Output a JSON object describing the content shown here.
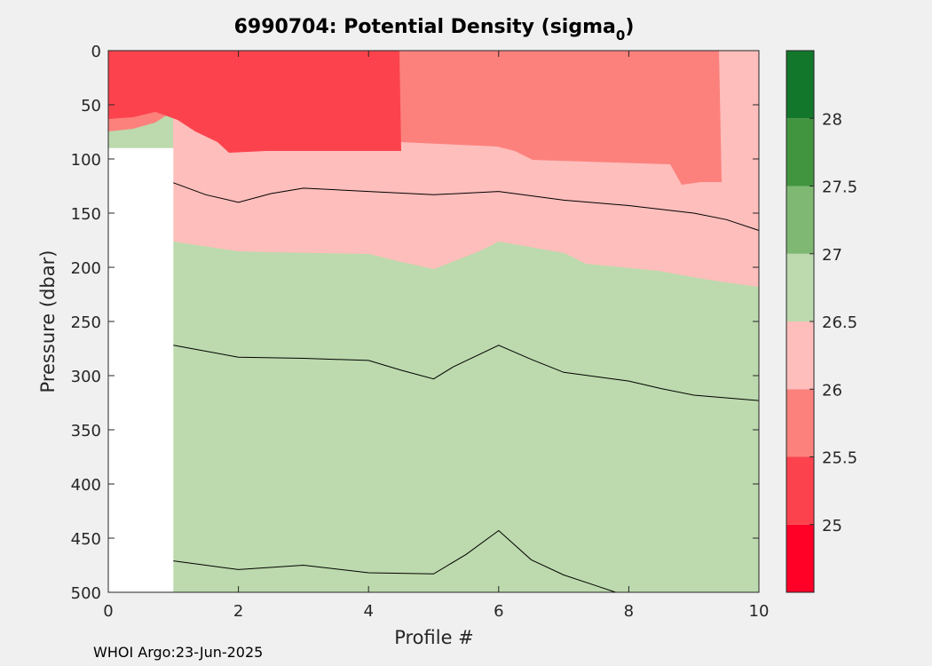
{
  "chart_data": {
    "type": "contour",
    "title_prefix": "6990704: Potential Density (sigma",
    "title_sub": "0",
    "title_suffix": ")",
    "xlabel": "Profile #",
    "ylabel": "Pressure (dbar)",
    "xlim": [
      0,
      10
    ],
    "ylim": [
      500,
      0
    ],
    "x_ticks": [
      0,
      2,
      4,
      6,
      8,
      10
    ],
    "y_ticks": [
      0,
      50,
      100,
      150,
      200,
      250,
      300,
      350,
      400,
      450,
      500
    ],
    "colorbar": {
      "range": [
        24.5,
        28.5
      ],
      "ticks": [
        "25",
        "25.5",
        "26",
        "26.5",
        "27",
        "27.5",
        "28"
      ],
      "bands": [
        {
          "from": 24.5,
          "to": 25.0,
          "color": "#ff0026"
        },
        {
          "from": 25.0,
          "to": 25.5,
          "color": "#fc434d"
        },
        {
          "from": 25.5,
          "to": 26.0,
          "color": "#fc817d"
        },
        {
          "from": 26.0,
          "to": 26.5,
          "color": "#febebb"
        },
        {
          "from": 26.5,
          "to": 27.0,
          "color": "#bcdaad"
        },
        {
          "from": 27.0,
          "to": 27.5,
          "color": "#7fb873"
        },
        {
          "from": 27.5,
          "to": 28.0,
          "color": "#42953f"
        },
        {
          "from": 28.0,
          "to": 28.5,
          "color": "#12772b"
        }
      ]
    },
    "no_data": {
      "x": [
        0,
        1
      ],
      "pressure": [
        90,
        500
      ]
    },
    "contours": [
      {
        "level": 26.5,
        "points": [
          [
            1,
            272
          ],
          [
            2,
            283
          ],
          [
            3,
            284
          ],
          [
            4,
            286
          ],
          [
            4.5,
            295
          ],
          [
            5,
            303
          ],
          [
            5.3,
            292
          ],
          [
            6,
            272
          ],
          [
            6.5,
            285
          ],
          [
            7,
            297
          ],
          [
            8,
            305
          ],
          [
            8.5,
            312
          ],
          [
            9,
            318
          ],
          [
            10,
            323
          ]
        ]
      },
      {
        "level": 26.0,
        "points": [
          [
            1,
            122
          ],
          [
            1.5,
            133
          ],
          [
            2,
            140
          ],
          [
            2.5,
            132
          ],
          [
            3,
            127
          ],
          [
            4,
            130
          ],
          [
            5,
            133
          ],
          [
            6,
            130
          ],
          [
            7,
            138
          ],
          [
            8,
            143
          ],
          [
            9,
            150
          ],
          [
            9.5,
            156
          ],
          [
            10,
            166
          ]
        ]
      },
      {
        "level": 27.0,
        "points": [
          [
            1,
            471
          ],
          [
            2,
            479
          ],
          [
            3,
            475
          ],
          [
            4,
            482
          ],
          [
            5,
            483
          ],
          [
            5.5,
            465
          ],
          [
            6,
            443
          ],
          [
            6.5,
            470
          ],
          [
            7,
            484
          ],
          [
            7.5,
            494
          ],
          [
            7.8,
            500
          ]
        ]
      }
    ]
  },
  "footer": "WHOI Argo:23-Jun-2025"
}
